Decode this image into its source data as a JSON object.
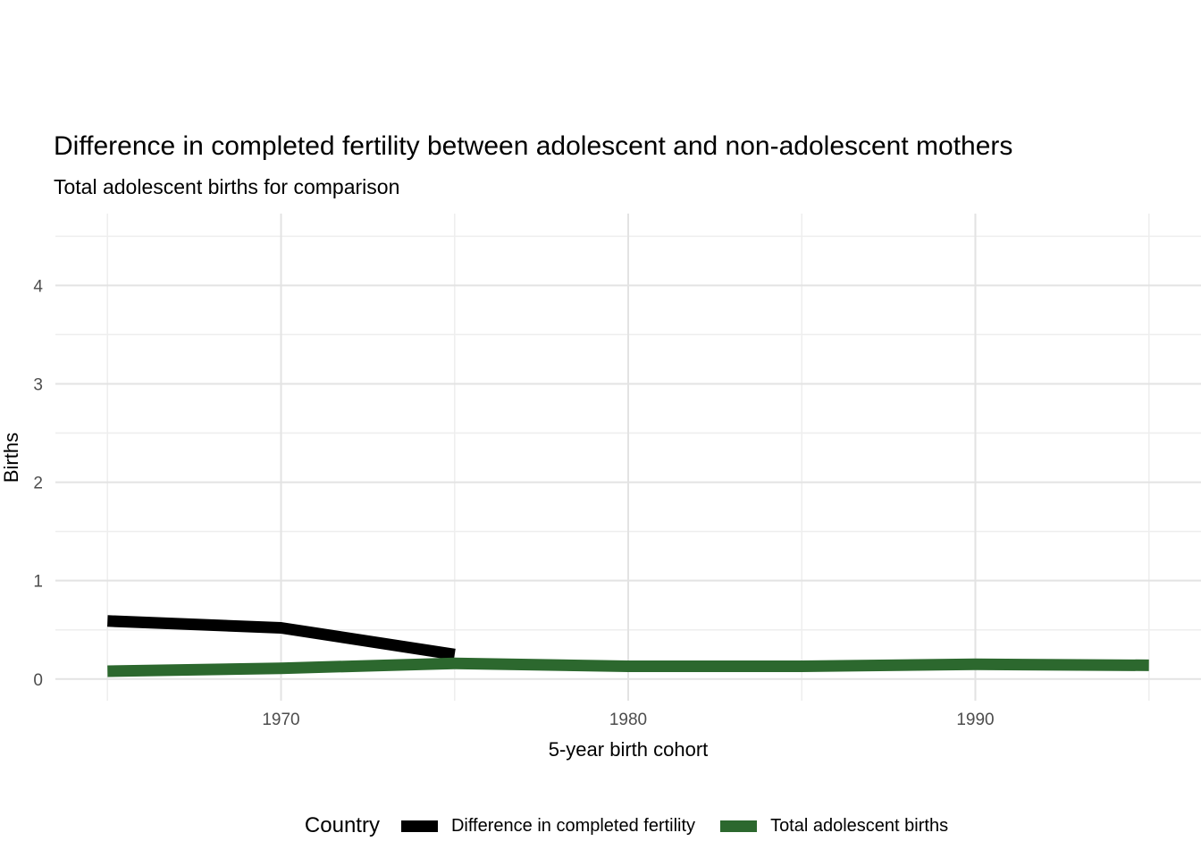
{
  "title": "Difference in completed fertility between adolescent and non-adolescent mothers",
  "subtitle": "Total adolescent births for comparison",
  "axes": {
    "x_label": "5-year birth cohort",
    "y_label": "Births"
  },
  "legend": {
    "title": "Country",
    "items": [
      {
        "label": "Difference in completed fertility",
        "color": "#000000"
      },
      {
        "label": "Total adolescent births",
        "color": "#2c682e"
      }
    ]
  },
  "colors": {
    "background": "#ffffff",
    "grid_major": "#e3e3e3",
    "grid_minor": "#eeeeee",
    "tick_label": "#4d4d4d",
    "series_black": "#000000",
    "series_green": "#2c682e"
  },
  "chart_data": {
    "type": "line",
    "title": "Difference in completed fertility between adolescent and non-adolescent mothers",
    "subtitle": "Total adolescent births for comparison",
    "xlabel": "5-year birth cohort",
    "ylabel": "Births",
    "xlim": [
      1963.5,
      1996.5
    ],
    "ylim": [
      -0.22,
      4.73
    ],
    "x_major_ticks": [
      1970,
      1980,
      1990
    ],
    "x_minor_ticks": [
      1965,
      1975,
      1985,
      1995
    ],
    "y_major_ticks": [
      0,
      1,
      2,
      3,
      4
    ],
    "y_minor_ticks": [
      0.5,
      1.5,
      2.5,
      3.5,
      4.5
    ],
    "grid": true,
    "legend_title": "Country",
    "legend_position": "bottom",
    "series": [
      {
        "name": "Difference in completed fertility",
        "color": "#000000",
        "x": [
          1965,
          1970,
          1975
        ],
        "y": [
          0.59,
          0.52,
          0.25
        ]
      },
      {
        "name": "Total adolescent births",
        "color": "#2c682e",
        "x": [
          1965,
          1970,
          1975,
          1980,
          1985,
          1990,
          1995
        ],
        "y": [
          0.08,
          0.11,
          0.16,
          0.13,
          0.13,
          0.15,
          0.14
        ]
      }
    ]
  }
}
